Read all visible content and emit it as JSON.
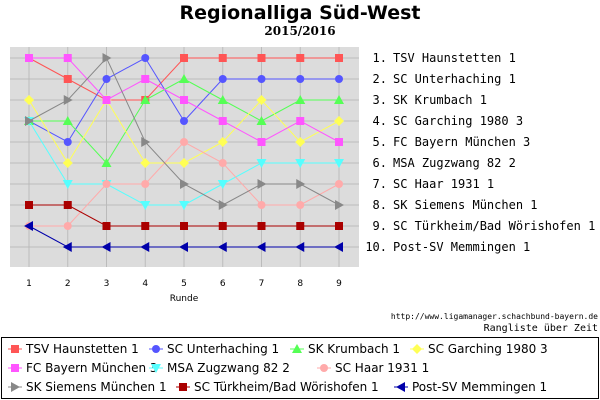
{
  "chart_data": {
    "type": "line",
    "title": "Regionalliga Süd-West",
    "subtitle": "2015/2016",
    "xlabel": "Runde",
    "x": [
      1,
      2,
      3,
      4,
      5,
      6,
      7,
      8,
      9
    ],
    "ylim": [
      1,
      10
    ],
    "y_inverted": true,
    "grid": true,
    "rank_labels": [
      "1. TSV Haunstetten 1",
      "2. SC Unterhaching 1",
      "3. SK Krumbach 1",
      "4. SC Garching 1980 3",
      "5. FC Bayern München 3",
      "6. MSA Zugzwang 82 2",
      "7. SC Haar 1931 1",
      "8. SK Siemens München 1",
      "9. SC Türkheim/Bad Wörishofen 1",
      "10. Post-SV Memmingen 1"
    ],
    "series": [
      {
        "name": "TSV Haunstetten 1",
        "color": "#ff5555",
        "marker": "square",
        "values": [
          1,
          2,
          3,
          3,
          1,
          1,
          1,
          1,
          1
        ]
      },
      {
        "name": "SC Unterhaching 1",
        "color": "#5555ff",
        "marker": "circle",
        "values": [
          4,
          5,
          2,
          1,
          4,
          2,
          2,
          2,
          2
        ]
      },
      {
        "name": "SK Krumbach 1",
        "color": "#55ff55",
        "marker": "triangle-up",
        "values": [
          4,
          4,
          6,
          3,
          2,
          3,
          4,
          3,
          3
        ]
      },
      {
        "name": "SC Garching 1980 3",
        "color": "#ffff55",
        "marker": "diamond",
        "values": [
          3,
          6,
          3,
          6,
          6,
          5,
          3,
          5,
          4
        ]
      },
      {
        "name": "FC Bayern München 3",
        "color": "#ff55ff",
        "marker": "square",
        "values": [
          1,
          1,
          3,
          2,
          3,
          4,
          5,
          4,
          5
        ]
      },
      {
        "name": "MSA Zugzwang 82 2",
        "color": "#55ffff",
        "marker": "triangle-down",
        "values": [
          4,
          7,
          7,
          8,
          8,
          7,
          6,
          6,
          6
        ]
      },
      {
        "name": "SC Haar 1931 1",
        "color": "#ffaaaa",
        "marker": "circle",
        "values": [
          9,
          9,
          7,
          7,
          5,
          6,
          8,
          8,
          7
        ]
      },
      {
        "name": "SK Siemens München 1",
        "color": "#888888",
        "marker": "triangle-right",
        "values": [
          4,
          3,
          1,
          5,
          7,
          8,
          7,
          7,
          8
        ]
      },
      {
        "name": "SC Türkheim/Bad Wörishofen 1",
        "color": "#aa0000",
        "marker": "square",
        "values": [
          8,
          8,
          9,
          9,
          9,
          9,
          9,
          9,
          9
        ]
      },
      {
        "name": "Post-SV Memmingen 1",
        "color": "#0000aa",
        "marker": "triangle-left",
        "values": [
          9,
          10,
          10,
          10,
          10,
          10,
          10,
          10,
          10
        ]
      }
    ],
    "legend_position": "bottom"
  },
  "credit": "http://www.ligamanager.schachbund-bayern.de",
  "caption": "Rangliste über Zeit"
}
